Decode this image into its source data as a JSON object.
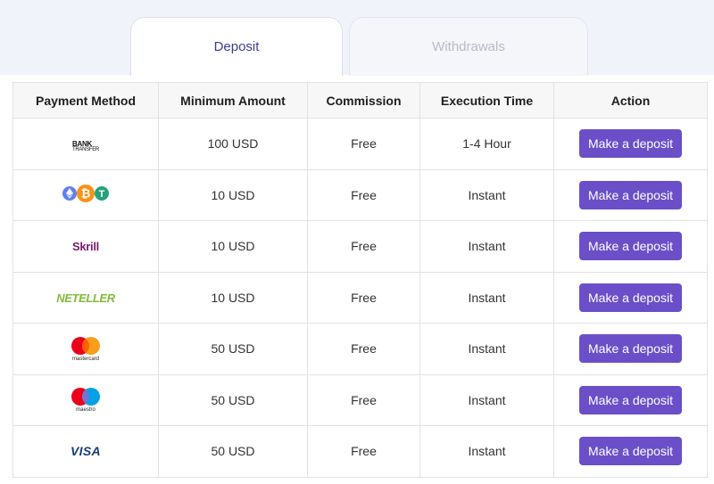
{
  "tabs": [
    {
      "label": "Deposit",
      "active": true
    },
    {
      "label": "Withdrawals",
      "active": false
    }
  ],
  "table": {
    "headers": [
      "Payment Method",
      "Minimum Amount",
      "Commission",
      "Execution Time",
      "Action"
    ],
    "rows": [
      {
        "method_icon": "bank-transfer-logo",
        "logo_text": "BANK",
        "logo_subtext": "TRANSFER",
        "minimum": "100 USD",
        "commission": "Free",
        "execution": "1-4 Hour",
        "action": "Make a deposit"
      },
      {
        "method_icon": "crypto-coins-logo",
        "minimum": "10 USD",
        "commission": "Free",
        "execution": "Instant",
        "action": "Make a deposit"
      },
      {
        "method_icon": "skrill-logo",
        "logo_text": "Skrill",
        "minimum": "10 USD",
        "commission": "Free",
        "execution": "Instant",
        "action": "Make a deposit"
      },
      {
        "method_icon": "neteller-logo",
        "logo_text": "NETELLER",
        "minimum": "10 USD",
        "commission": "Free",
        "execution": "Instant",
        "action": "Make a deposit"
      },
      {
        "method_icon": "mastercard-logo",
        "logo_text": "mastercard",
        "minimum": "50 USD",
        "commission": "Free",
        "execution": "Instant",
        "action": "Make a deposit"
      },
      {
        "method_icon": "maestro-logo",
        "logo_text": "maestro",
        "minimum": "50 USD",
        "commission": "Free",
        "execution": "Instant",
        "action": "Make a deposit"
      },
      {
        "method_icon": "visa-logo",
        "logo_text": "VISA",
        "minimum": "50 USD",
        "commission": "Free",
        "execution": "Instant",
        "action": "Make a deposit"
      }
    ]
  },
  "colors": {
    "accent": "#6a4fc8",
    "active_tab_text": "#3b3f8f",
    "inactive_tab_text": "#b8bbc6",
    "top_band": "#f1f3fa"
  }
}
